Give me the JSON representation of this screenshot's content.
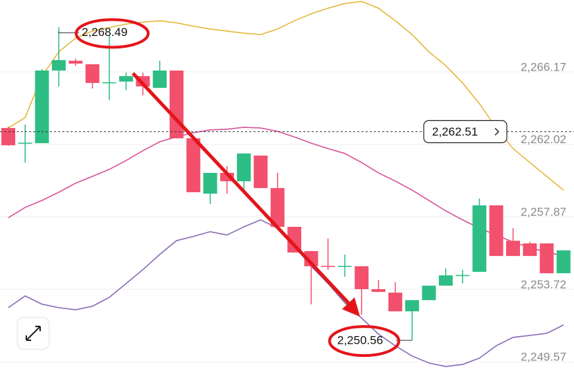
{
  "chart_data": {
    "type": "candlestick",
    "ylim": [
      2248.86,
      2270.05
    ],
    "yticks": [
      {
        "value": 2266.17,
        "label": "2,266.17"
      },
      {
        "value": 2262.02,
        "label": "2,262.02"
      },
      {
        "value": 2257.87,
        "label": "2,257.87"
      },
      {
        "value": 2253.72,
        "label": "2,253.72"
      },
      {
        "value": 2249.57,
        "label": "2,249.57"
      }
    ],
    "grid": true,
    "up_color": "#2dbd85",
    "down_color": "#f2506c",
    "open": [
      2262.72,
      2261.82,
      2261.85,
      2266.01,
      2266.57,
      2266.37,
      2265.28,
      2265.38,
      2265.69,
      2265.02,
      2266.01,
      2262.13,
      2258.96,
      2260.15,
      2259.67,
      2261.14,
      2259.28,
      2257.06,
      2255.67,
      2254.82,
      2254.78,
      2254.8,
      2253.49,
      2253.29,
      2252.22,
      2252.86,
      2253.69,
      2254.26,
      2254.48,
      2258.29,
      2256.26,
      2256.11,
      2256.11,
      2254.4
    ],
    "high": [
      2262.8,
      2262.92,
      2266.09,
      2268.49,
      2266.69,
      2266.37,
      2268.05,
      2265.89,
      2265.89,
      2266.57,
      2266.01,
      2262.13,
      2260.15,
      2260.54,
      2261.26,
      2261.14,
      2260.15,
      2257.06,
      2255.67,
      2256.38,
      2255.47,
      2254.8,
      2254.01,
      2253.89,
      2252.86,
      2253.69,
      2254.68,
      2254.6,
      2258.68,
      2258.29,
      2256.98,
      2256.19,
      2256.11,
      2255.71
    ],
    "low": [
      2261.7,
      2260.74,
      2261.85,
      2265.1,
      2266.29,
      2264.98,
      2264.31,
      2264.9,
      2264.59,
      2265.02,
      2262.13,
      2259.04,
      2258.37,
      2258.96,
      2259.16,
      2259.28,
      2257.06,
      2255.59,
      2252.62,
      2254.6,
      2254.2,
      2252.03,
      2253.33,
      2252.22,
      2250.56,
      2252.86,
      2253.69,
      2253.81,
      2254.48,
      2255.39,
      2255.39,
      2255.39,
      2254.4,
      2254.4
    ],
    "close": [
      2261.73,
      2261.88,
      2266.01,
      2266.61,
      2266.41,
      2265.3,
      2265.34,
      2265.69,
      2265.1,
      2266.01,
      2262.13,
      2259.04,
      2260.15,
      2259.67,
      2261.26,
      2259.28,
      2257.06,
      2255.59,
      2254.8,
      2254.78,
      2254.82,
      2253.49,
      2253.33,
      2252.22,
      2252.86,
      2253.69,
      2254.28,
      2254.3,
      2258.29,
      2255.39,
      2255.39,
      2255.39,
      2254.4,
      2255.71
    ],
    "bands": [
      {
        "color": "#e3b93a",
        "values": [
          2262.72,
          2263.32,
          2265.69,
          2267.08,
          2267.87,
          2268.27,
          2268.47,
          2268.67,
          2268.78,
          2268.86,
          2268.74,
          2268.55,
          2268.39,
          2268.27,
          2268.15,
          2268.07,
          2268.39,
          2268.86,
          2269.26,
          2269.58,
          2269.85,
          2269.97,
          2269.58,
          2268.86,
          2268.07,
          2267.08,
          2266.29,
          2265.3,
          2264.11,
          2262.72,
          2261.54,
          2260.74,
          2259.95,
          2259.16
        ]
      },
      {
        "color": "#d9529b",
        "values": [
          2257.58,
          2258.17,
          2258.57,
          2259.04,
          2259.56,
          2259.95,
          2260.35,
          2260.86,
          2261.42,
          2261.93,
          2262.21,
          2262.45,
          2262.61,
          2262.65,
          2262.76,
          2262.72,
          2262.53,
          2262.21,
          2261.85,
          2261.54,
          2261.26,
          2260.74,
          2260.15,
          2259.68,
          2259.16,
          2258.57,
          2257.97,
          2257.46,
          2256.98,
          2256.59,
          2256.19,
          2255.87,
          2255.6,
          2255.4
        ]
      },
      {
        "color": "#8a6bb5",
        "values": [
          2252.43,
          2253.1,
          2252.63,
          2252.43,
          2252.31,
          2252.51,
          2253.02,
          2253.81,
          2254.61,
          2255.48,
          2256.27,
          2256.51,
          2256.78,
          2256.59,
          2257.06,
          2257.46,
          2256.98,
          2255.99,
          2254.8,
          2253.81,
          2252.71,
          2251.83,
          2250.92,
          2250.25,
          2249.66,
          2249.26,
          2249.06,
          2249.18,
          2249.54,
          2250.25,
          2250.73,
          2250.84,
          2250.96,
          2251.44
        ]
      }
    ],
    "current_price": {
      "value": 2262.51,
      "label": "2,262.51"
    },
    "high_marker": {
      "value": 2268.49,
      "label": "2,268.49",
      "candle": 3
    },
    "low_marker": {
      "value": 2250.56,
      "label": "2,250.56",
      "candle": 24
    }
  }
}
